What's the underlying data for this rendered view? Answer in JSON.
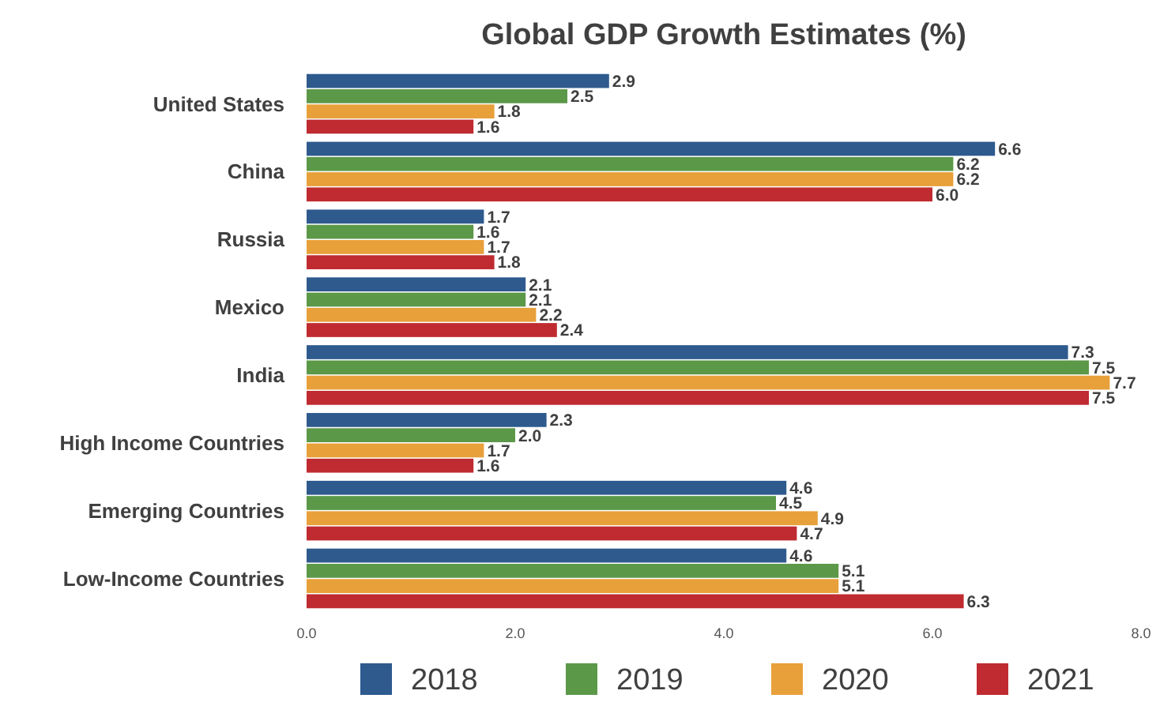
{
  "chart_data": {
    "type": "bar",
    "orientation": "horizontal",
    "title": "Global GDP Growth Estimates (%)",
    "categories": [
      "United States",
      "China",
      "Russia",
      "Mexico",
      "India",
      "High Income Countries",
      "Emerging Countries",
      "Low-Income Countries"
    ],
    "series": [
      {
        "name": "2018",
        "color": "#2e5a8e",
        "values": [
          2.9,
          6.6,
          1.7,
          2.1,
          7.3,
          2.3,
          4.6,
          4.6
        ],
        "value_labels": [
          "2.9",
          "6.6",
          "1.7",
          "2.1",
          "7.3",
          "2.3",
          "4.6",
          "4.6"
        ]
      },
      {
        "name": "2019",
        "color": "#5b9848",
        "values": [
          2.5,
          6.2,
          1.6,
          2.1,
          7.5,
          2.0,
          4.5,
          5.1
        ],
        "value_labels": [
          "2.5",
          "6.2",
          "1.6",
          "2.1",
          "7.5",
          "2.0",
          "4.5",
          "5.1"
        ]
      },
      {
        "name": "2020",
        "color": "#e8a03a",
        "values": [
          1.8,
          6.2,
          1.7,
          2.2,
          7.7,
          1.7,
          4.9,
          5.1
        ],
        "value_labels": [
          "1.8",
          "6.2",
          "1.7",
          "2.2",
          "7.7",
          "1.7",
          "4.9",
          "5.1"
        ]
      },
      {
        "name": "2021",
        "color": "#bf2b30",
        "values": [
          1.6,
          6.0,
          1.8,
          2.4,
          7.5,
          1.6,
          4.7,
          6.3
        ],
        "value_labels": [
          "1.6",
          "6.0",
          "1.8",
          "2.4",
          "7.5",
          "1.6",
          "4.7",
          "6.3"
        ]
      }
    ],
    "xlim": [
      0,
      8
    ],
    "xticks": [
      {
        "value": 0,
        "label": "0.0"
      },
      {
        "value": 2,
        "label": "2.0"
      },
      {
        "value": 4,
        "label": "4.0"
      },
      {
        "value": 6,
        "label": "6.0"
      },
      {
        "value": 8,
        "label": "8.0"
      }
    ],
    "legend": "bottom",
    "grid": false
  }
}
